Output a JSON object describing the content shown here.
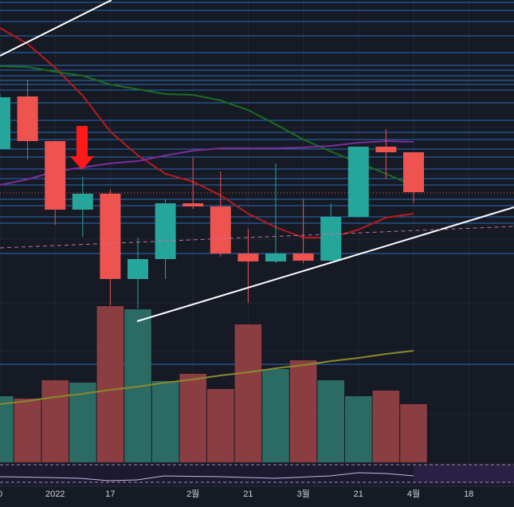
{
  "chart_data": {
    "type": "candlestick",
    "categories": [
      "0",
      null,
      "2022",
      null,
      "17",
      null,
      null,
      "2월",
      null,
      "21",
      null,
      "3월",
      null,
      "21",
      null,
      "4월",
      null,
      "18"
    ],
    "open": [
      213,
      279,
      223,
      137,
      157,
      50,
      75,
      145,
      141,
      82,
      72,
      82,
      73,
      128,
      216,
      209,
      null,
      null
    ],
    "high": [
      282,
      300,
      223,
      178,
      162,
      102,
      150,
      202,
      185,
      113,
      195,
      150,
      145,
      216,
      238,
      209,
      null,
      null
    ],
    "low": [
      213,
      200,
      118,
      103,
      17,
      13,
      50,
      138,
      78,
      20,
      70,
      70,
      70,
      128,
      175,
      145,
      null,
      null
    ],
    "close": [
      278,
      223,
      137,
      157,
      50,
      75,
      145,
      141,
      82,
      72,
      82,
      73,
      128,
      216,
      209,
      159,
      null,
      null
    ],
    "up_color": "#26a69a",
    "down_color": "#ef5350",
    "ylim": [
      0,
      400
    ],
    "moving_averages": [
      {
        "color": "#b71c1c",
        "values": [
          365,
          345,
          315,
          280,
          235,
          205,
          182,
          172,
          155,
          132,
          115,
          102,
          102,
          112,
          127,
          132,
          null,
          null
        ]
      },
      {
        "color": "#1b6e20",
        "values": [
          317,
          316,
          310,
          305,
          294,
          288,
          282,
          281,
          274,
          262,
          244,
          225,
          210,
          196,
          182,
          167,
          null,
          null
        ]
      },
      {
        "color": "#7b2d9c",
        "values": [
          168,
          175,
          185,
          190,
          195,
          198,
          205,
          211,
          214,
          214,
          214,
          215,
          217,
          221,
          223,
          222,
          null,
          null
        ]
      }
    ],
    "volume": {
      "values": [
        83,
        80,
        103,
        100,
        196,
        192,
        102,
        111,
        92,
        173,
        117,
        128,
        103,
        83,
        90,
        73,
        null,
        null
      ],
      "ylim": [
        0,
        200
      ],
      "up_color": "#2b6b64",
      "down_color": "#8b3e42",
      "ma": {
        "color": "#8a8a2e",
        "values": [
          73,
          77,
          82,
          86,
          91,
          95,
          100,
          104,
          109,
          113,
          118,
          122,
          127,
          131,
          136,
          140,
          null,
          null
        ]
      }
    }
  }
}
